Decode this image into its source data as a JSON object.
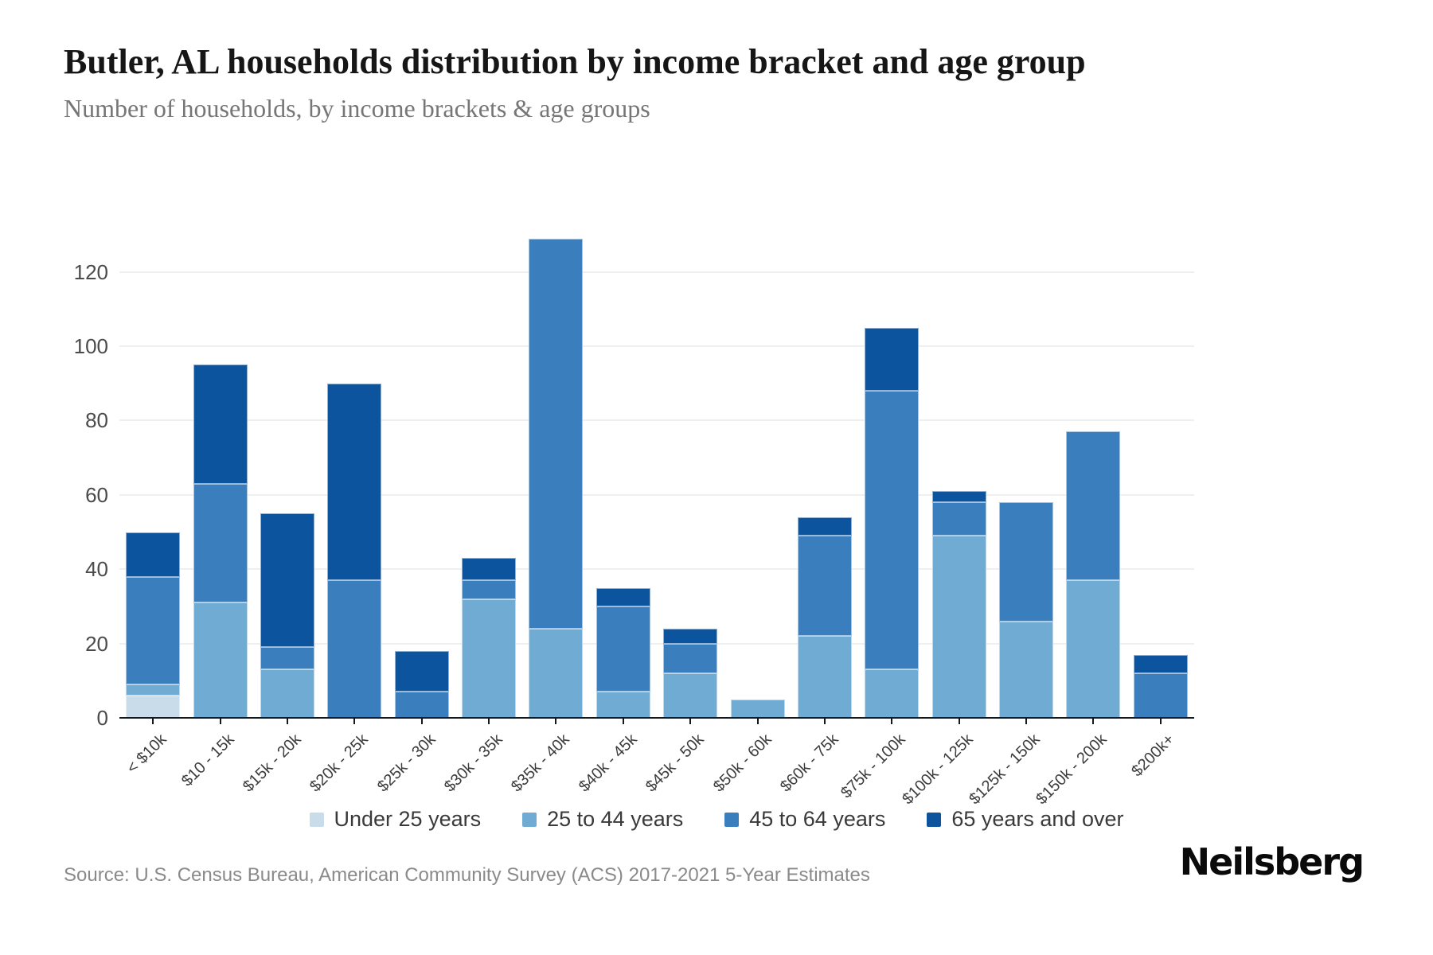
{
  "header": {
    "title": "Butler, AL households distribution by income bracket and age group",
    "subtitle": "Number of households, by income brackets & age groups"
  },
  "chart_data": {
    "type": "bar",
    "stacked": true,
    "title": "Butler, AL households distribution by income bracket and age group",
    "xlabel": "",
    "ylabel": "Number of households",
    "categories": [
      "< $10k",
      "$10 - 15k",
      "$15k - 20k",
      "$20k - 25k",
      "$25k - 30k",
      "$30k - 35k",
      "$35k - 40k",
      "$40k - 45k",
      "$45k - 50k",
      "$50k - 60k",
      "$60k - 75k",
      "$75k - 100k",
      "$100k - 125k",
      "$125k - 150k",
      "$150k - 200k",
      "$200k+"
    ],
    "series": [
      {
        "name": "Under 25 years",
        "color": "#c9dcea",
        "values": [
          6,
          0,
          0,
          0,
          0,
          0,
          0,
          0,
          0,
          0,
          0,
          0,
          0,
          0,
          0,
          0
        ]
      },
      {
        "name": "25 to 44 years",
        "color": "#6fabd3",
        "values": [
          3,
          31,
          13,
          0,
          0,
          32,
          24,
          7,
          12,
          5,
          22,
          13,
          49,
          26,
          37,
          0
        ]
      },
      {
        "name": "45 to 64 years",
        "color": "#3a7ebe",
        "values": [
          29,
          32,
          6,
          37,
          7,
          5,
          105,
          23,
          8,
          0,
          27,
          75,
          9,
          32,
          40,
          12
        ]
      },
      {
        "name": "65 years and over",
        "color": "#0d549e",
        "values": [
          12,
          32,
          36,
          53,
          11,
          6,
          0,
          5,
          4,
          0,
          5,
          17,
          3,
          0,
          0,
          5
        ]
      }
    ],
    "totals": [
      50,
      95,
      55,
      90,
      18,
      43,
      129,
      35,
      24,
      5,
      54,
      105,
      61,
      58,
      77,
      17
    ],
    "ylim": [
      0,
      138
    ],
    "yticks": [
      0,
      20,
      40,
      60,
      80,
      100,
      120
    ],
    "grid": "horizontal",
    "legend_position": "bottom"
  },
  "source": {
    "text": "Source: U.S. Census Bureau, American Community Survey (ACS) 2017-2021 5-Year Estimates"
  },
  "brand": {
    "logo_text": "Neilsberg"
  }
}
